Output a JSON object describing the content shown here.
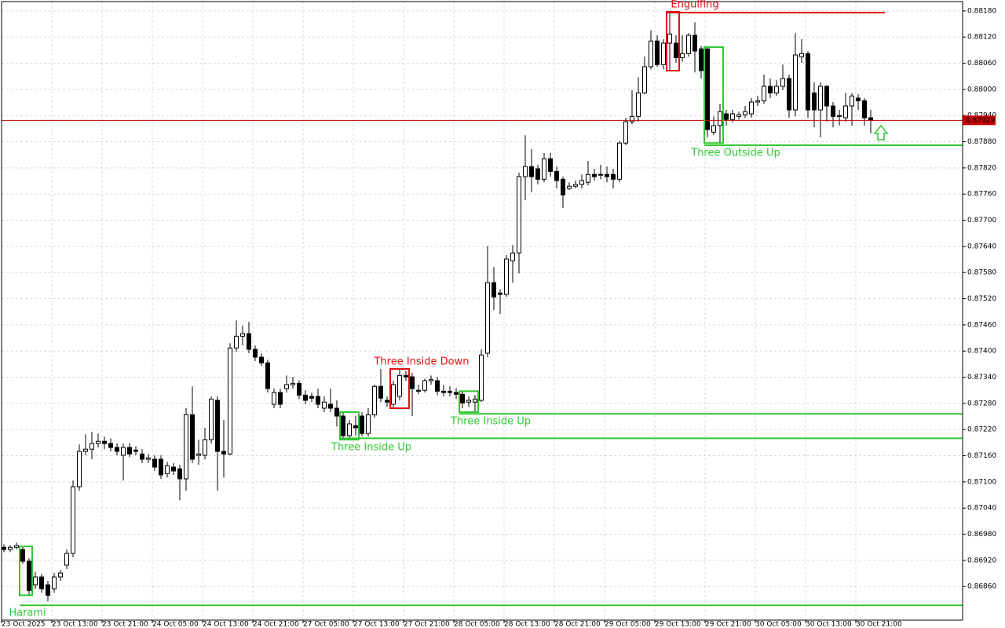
{
  "chart_data": {
    "type": "candlestick",
    "categories": [
      "23 Oct 2025",
      null,
      null,
      null,
      null,
      null,
      null,
      null,
      "23 Oct 13:00",
      null,
      null,
      null,
      null,
      null,
      null,
      null,
      "23 Oct 21:00",
      null,
      null,
      null,
      null,
      null,
      null,
      null,
      "24 Oct 05:00",
      null,
      null,
      null,
      null,
      null,
      null,
      null,
      "24 Oct 13:00",
      null,
      null,
      null,
      null,
      null,
      null,
      null,
      "24 Oct 21:00",
      null,
      null,
      null,
      null,
      null,
      null,
      null,
      "27 Oct 05:00",
      null,
      null,
      null,
      null,
      null,
      null,
      null,
      "27 Oct 13:00",
      null,
      null,
      null,
      null,
      null,
      null,
      null,
      "27 Oct 21:00",
      null,
      null,
      null,
      null,
      null,
      null,
      null,
      "28 Oct 05:00",
      null,
      null,
      null,
      null,
      null,
      null,
      null,
      "28 Oct 13:00",
      null,
      null,
      null,
      null,
      null,
      null,
      null,
      "28 Oct 21:00",
      null,
      null,
      null,
      null,
      null,
      null,
      null,
      "29 Oct 05:00",
      null,
      null,
      null,
      null,
      null,
      null,
      null,
      "29 Oct 13:00",
      null,
      null,
      null,
      null,
      null,
      null,
      null,
      "29 Oct 21:00",
      null,
      null,
      null,
      null,
      null,
      null,
      null,
      "30 Oct 05:00",
      null,
      null,
      null,
      null,
      null,
      null,
      null,
      "30 Oct 13:00",
      null,
      null,
      null,
      null,
      null,
      null,
      null,
      "30 Oct 21:00",
      null,
      null
    ],
    "open": [
      0.8695,
      0.86945,
      0.8695,
      0.86945,
      0.86918,
      0.86864,
      0.86882,
      0.86864,
      0.86855,
      0.86882,
      0.86909,
      0.86936,
      0.87089,
      0.8717,
      0.87175,
      0.87188,
      0.87193,
      0.87188,
      0.87179,
      0.87161,
      0.87179,
      0.87173,
      0.87164,
      0.87152,
      0.87152,
      0.87152,
      0.87119,
      0.87134,
      0.8713,
      0.87107,
      0.87254,
      0.87161,
      0.87161,
      0.87197,
      0.87287,
      0.8717,
      0.87164,
      0.87407,
      0.87434,
      0.8744,
      0.87404,
      0.87386,
      0.87373,
      0.87278,
      0.87305,
      0.87314,
      0.87323,
      0.87326,
      0.87299,
      0.87296,
      0.87296,
      0.87269,
      0.87278,
      0.87269,
      0.87251,
      0.87206,
      0.87229,
      0.87251,
      0.87211,
      0.87254,
      0.87319,
      0.87287,
      0.87278,
      0.87296,
      0.87344,
      0.87341,
      0.87308,
      0.8731,
      0.87332,
      0.87332,
      0.87308,
      0.87308,
      0.87305,
      0.87301,
      0.87283,
      0.87283,
      0.87287,
      0.87395,
      0.87557,
      0.87533,
      0.8753,
      0.87607,
      0.87625,
      0.878,
      0.87823,
      0.87818,
      0.87794,
      0.87841,
      0.87812,
      0.87794,
      0.87773,
      0.87778,
      0.87782,
      0.87787,
      0.87805,
      0.87805,
      0.87805,
      0.87805,
      0.87794,
      0.87877,
      0.87926,
      0.87938,
      0.87992,
      0.88052,
      0.88111,
      0.88057,
      0.88106,
      0.88106,
      0.88073,
      0.88082,
      0.88124,
      0.88093,
      0.88093,
      0.87902,
      0.87917,
      0.87944,
      0.87931,
      0.87938,
      0.87942,
      0.87944,
      0.87971,
      0.87974,
      0.88007,
      0.87992,
      0.88007,
      0.88025,
      0.87953,
      0.88075,
      0.88082,
      0.87992,
      0.87953,
      0.88007,
      0.87962,
      0.87938,
      0.87935,
      0.87962,
      0.8798,
      0.87974,
      0.87935
    ],
    "high": [
      0.86957,
      0.86955,
      0.86961,
      0.86952,
      0.86925,
      0.86894,
      0.86889,
      0.86873,
      0.86891,
      0.86898,
      0.86945,
      0.87103,
      0.87186,
      0.87209,
      0.87215,
      0.87211,
      0.87204,
      0.872,
      0.87188,
      0.87188,
      0.87189,
      0.87182,
      0.87175,
      0.87164,
      0.87161,
      0.87161,
      0.87146,
      0.87143,
      0.87139,
      0.87269,
      0.87319,
      0.87197,
      0.87224,
      0.87296,
      0.87296,
      0.87242,
      0.87418,
      0.8747,
      0.87458,
      0.87467,
      0.87413,
      0.87395,
      0.8738,
      0.87314,
      0.87314,
      0.87344,
      0.87341,
      0.87333,
      0.8731,
      0.87305,
      0.87314,
      0.87296,
      0.87314,
      0.87287,
      0.8726,
      0.87242,
      0.87251,
      0.8726,
      0.87269,
      0.87323,
      0.87359,
      0.87296,
      0.87332,
      0.87359,
      0.87355,
      0.8735,
      0.87323,
      0.87337,
      0.87344,
      0.87341,
      0.87323,
      0.87319,
      0.87315,
      0.87308,
      0.87296,
      0.87299,
      0.87404,
      0.87641,
      0.87593,
      0.87542,
      0.8762,
      0.87643,
      0.87809,
      0.87895,
      0.87863,
      0.87827,
      0.87854,
      0.87854,
      0.87823,
      0.878,
      0.87787,
      0.87791,
      0.87805,
      0.87836,
      0.87818,
      0.87827,
      0.87823,
      0.87818,
      0.87881,
      0.87935,
      0.87998,
      0.88028,
      0.88075,
      0.88136,
      0.88124,
      0.88115,
      0.88178,
      0.88124,
      0.88124,
      0.88129,
      0.88154,
      0.881,
      0.88097,
      0.87938,
      0.87967,
      0.87953,
      0.87953,
      0.87949,
      0.87962,
      0.8798,
      0.87985,
      0.88034,
      0.88025,
      0.88021,
      0.88057,
      0.88034,
      0.88129,
      0.88115,
      0.88088,
      0.88016,
      0.88016,
      0.8801,
      0.87971,
      0.87953,
      0.87992,
      0.87992,
      0.87989,
      0.8798,
      0.87953
    ],
    "low": [
      0.86939,
      0.86939,
      0.86945,
      0.86912,
      0.8684,
      0.86855,
      0.86846,
      0.86826,
      0.86846,
      0.86873,
      0.869,
      0.86927,
      0.8708,
      0.87161,
      0.87152,
      0.87179,
      0.87175,
      0.8717,
      0.87161,
      0.87103,
      0.87157,
      0.87161,
      0.87143,
      0.87143,
      0.87125,
      0.87107,
      0.8711,
      0.87116,
      0.87058,
      0.8708,
      0.87143,
      0.87139,
      0.87152,
      0.87188,
      0.8708,
      0.8711,
      0.87161,
      0.87398,
      0.87413,
      0.87395,
      0.87377,
      0.87366,
      0.87305,
      0.87269,
      0.87269,
      0.87305,
      0.87314,
      0.8729,
      0.87278,
      0.87283,
      0.87269,
      0.8726,
      0.8726,
      0.87227,
      0.87197,
      0.87197,
      0.87206,
      0.87204,
      0.87204,
      0.87247,
      0.87283,
      0.87272,
      0.87269,
      0.87287,
      0.87332,
      0.87251,
      0.87301,
      0.87305,
      0.87323,
      0.87299,
      0.87296,
      0.87296,
      0.8729,
      0.87269,
      0.87272,
      0.8726,
      0.87283,
      0.87386,
      0.87494,
      0.87485,
      0.87524,
      0.87557,
      0.87578,
      0.87746,
      0.87764,
      0.87782,
      0.87787,
      0.878,
      0.87773,
      0.87728,
      0.87769,
      0.87773,
      0.87773,
      0.8778,
      0.87791,
      0.87794,
      0.87787,
      0.87773,
      0.87787,
      0.87872,
      0.8792,
      0.87926,
      0.87989,
      0.88046,
      0.88052,
      0.88046,
      0.88043,
      0.88061,
      0.88064,
      0.88075,
      0.88039,
      0.88025,
      0.8789,
      0.87895,
      0.87877,
      0.87917,
      0.87924,
      0.87931,
      0.87935,
      0.87935,
      0.87962,
      0.87967,
      0.8798,
      0.87985,
      0.87998,
      0.87935,
      0.87938,
      0.88061,
      0.87935,
      0.87913,
      0.8789,
      0.87926,
      0.87913,
      0.87917,
      0.87926,
      0.87917,
      0.87953,
      0.87917,
      0.87899
    ],
    "close": [
      0.86945,
      0.8695,
      0.86954,
      0.86918,
      0.86851,
      0.86882,
      0.86855,
      0.8684,
      0.86882,
      0.86891,
      0.86936,
      0.87089,
      0.8717,
      0.87175,
      0.87188,
      0.87193,
      0.87188,
      0.87179,
      0.8717,
      0.87179,
      0.87164,
      0.8717,
      0.87152,
      0.87155,
      0.87134,
      0.87116,
      0.87137,
      0.87125,
      0.87107,
      0.87254,
      0.87152,
      0.87164,
      0.87197,
      0.8729,
      0.8717,
      0.87164,
      0.87407,
      0.87434,
      0.8744,
      0.87404,
      0.87386,
      0.87373,
      0.87314,
      0.87305,
      0.87278,
      0.87323,
      0.87326,
      0.87299,
      0.87287,
      0.87292,
      0.87278,
      0.87283,
      0.87269,
      0.87251,
      0.87206,
      0.87233,
      0.87224,
      0.87211,
      0.87254,
      0.87319,
      0.87292,
      0.87283,
      0.87323,
      0.87344,
      0.87341,
      0.87314,
      0.8731,
      0.87332,
      0.87335,
      0.87308,
      0.87305,
      0.87305,
      0.87301,
      0.87281,
      0.87287,
      0.8729,
      0.87391,
      0.87557,
      0.87524,
      0.8753,
      0.87611,
      0.87625,
      0.878,
      0.87823,
      0.878,
      0.87794,
      0.87841,
      0.87812,
      0.87791,
      0.87758,
      0.87778,
      0.87782,
      0.87791,
      0.87805,
      0.878,
      0.87805,
      0.878,
      0.87794,
      0.87877,
      0.87926,
      0.87938,
      0.87992,
      0.88052,
      0.88111,
      0.88057,
      0.88106,
      0.88127,
      0.88073,
      0.88082,
      0.88124,
      0.88088,
      0.88043,
      0.87908,
      0.87917,
      0.87949,
      0.87931,
      0.87944,
      0.87942,
      0.87949,
      0.87971,
      0.87974,
      0.88007,
      0.87992,
      0.88007,
      0.88025,
      0.87953,
      0.88079,
      0.88082,
      0.87953,
      0.87953,
      0.88007,
      0.87962,
      0.87938,
      0.8794,
      0.87962,
      0.87985,
      0.87974,
      0.87935,
      0.87929
    ],
    "up_color": "#ffffff",
    "down_color": "#000000",
    "edge_color": "#000000",
    "last_price": 0.87929,
    "last_price_color": "#c80000",
    "ylim": [
      0.86783,
      0.88205
    ],
    "yticks": [
      {
        "value": 0.8818,
        "label": "0.88180"
      },
      {
        "value": 0.8812,
        "label": "0.88120"
      },
      {
        "value": 0.8806,
        "label": "0.88060"
      },
      {
        "value": 0.88,
        "label": "0.88000"
      },
      {
        "value": 0.8794,
        "label": "0.87940"
      },
      {
        "value": 0.8788,
        "label": "0.87880"
      },
      {
        "value": 0.8782,
        "label": "0.87820"
      },
      {
        "value": 0.8776,
        "label": "0.87760"
      },
      {
        "value": 0.877,
        "label": "0.87700"
      },
      {
        "value": 0.8764,
        "label": "0.87640"
      },
      {
        "value": 0.8758,
        "label": "0.87580"
      },
      {
        "value": 0.8752,
        "label": "0.87520"
      },
      {
        "value": 0.8746,
        "label": "0.87460"
      },
      {
        "value": 0.874,
        "label": "0.87400"
      },
      {
        "value": 0.8734,
        "label": "0.87340"
      },
      {
        "value": 0.8728,
        "label": "0.87280"
      },
      {
        "value": 0.8722,
        "label": "0.87220"
      },
      {
        "value": 0.8716,
        "label": "0.87160"
      },
      {
        "value": 0.871,
        "label": "0.87100"
      },
      {
        "value": 0.8704,
        "label": "0.87040"
      },
      {
        "value": 0.8698,
        "label": "0.86980"
      },
      {
        "value": 0.8692,
        "label": "0.86920"
      },
      {
        "value": 0.8686,
        "label": "0.86860"
      }
    ],
    "grid": true,
    "patterns": [
      {
        "label": "Harami",
        "color": "#32c832",
        "level": 0.86817
      },
      {
        "label": "Three Inside Up",
        "color": "#32c832",
        "level": 0.872
      },
      {
        "label": "Three Inside Down",
        "color": "#e01010"
      },
      {
        "label": "Three Inside Up",
        "color": "#32c832",
        "level": 0.87256
      },
      {
        "label": "Engulfing",
        "color": "#e01010",
        "level": 0.88176
      },
      {
        "label": "Three Outside Up",
        "color": "#32c832",
        "level": 0.87872
      }
    ]
  }
}
